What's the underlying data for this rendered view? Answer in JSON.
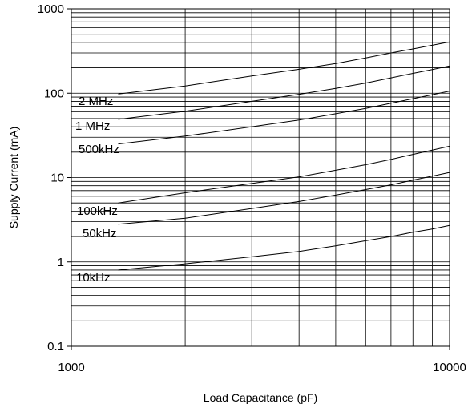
{
  "chart_data": {
    "type": "line",
    "title": "",
    "xlabel": "Load Capacitance (pF)",
    "ylabel": "Supply Current (mA)",
    "xscale": "log",
    "yscale": "log",
    "xlim": [
      1000,
      10000
    ],
    "ylim": [
      0.1,
      1000
    ],
    "xticks": [
      1000,
      10000
    ],
    "xtick_labels": [
      "1000",
      "10000"
    ],
    "yticks": [
      0.1,
      1,
      10,
      100,
      1000
    ],
    "ytick_labels": [
      "0.1",
      "1",
      "10",
      "100",
      "1000"
    ],
    "grid": true,
    "series": [
      {
        "name": "2 MHz",
        "x": [
          1330,
          2000,
          3000,
          4000,
          5000,
          6000,
          7000,
          8000,
          9000,
          10000
        ],
        "y": [
          98,
          122,
          160,
          192,
          225,
          262,
          300,
          335,
          370,
          405
        ]
      },
      {
        "name": "1 MHz",
        "x": [
          1330,
          2000,
          3000,
          4000,
          5000,
          6000,
          7000,
          8000,
          9000,
          10000
        ],
        "y": [
          49,
          61,
          80,
          97,
          114,
          132,
          152,
          172,
          191,
          210
        ]
      },
      {
        "name": "500kHz",
        "x": [
          1330,
          2000,
          3000,
          4000,
          5000,
          6000,
          7000,
          8000,
          9000,
          10000
        ],
        "y": [
          25,
          31,
          40,
          48,
          57,
          66,
          76,
          86,
          96,
          106
        ]
      },
      {
        "name": "100kHz",
        "x": [
          1330,
          2000,
          3000,
          4000,
          5000,
          6000,
          7000,
          8000,
          9000,
          10000
        ],
        "y": [
          5.0,
          6.6,
          8.5,
          10.2,
          12.2,
          14.2,
          16.4,
          18.8,
          21.2,
          23.5
        ]
      },
      {
        "name": "50kHz",
        "x": [
          1330,
          2000,
          3000,
          4000,
          5000,
          6000,
          7000,
          8000,
          9000,
          10000
        ],
        "y": [
          2.8,
          3.3,
          4.3,
          5.2,
          6.2,
          7.2,
          8.2,
          9.3,
          10.4,
          11.5
        ]
      },
      {
        "name": "10kHz",
        "x": [
          1330,
          2000,
          3000,
          4000,
          5000,
          6000,
          7000,
          8000,
          9000,
          10000
        ],
        "y": [
          0.8,
          0.95,
          1.15,
          1.33,
          1.55,
          1.78,
          2.0,
          2.25,
          2.45,
          2.7
        ]
      }
    ]
  }
}
